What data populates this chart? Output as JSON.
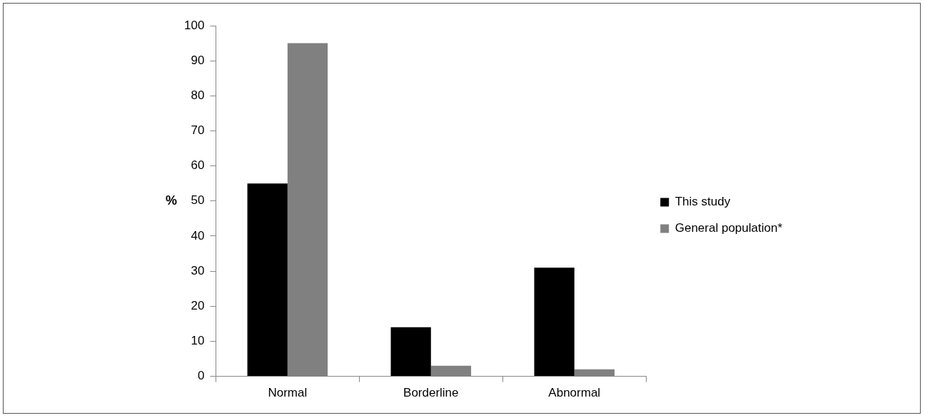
{
  "chart_data": {
    "type": "bar",
    "ylabel": "%",
    "categories": [
      "Normal",
      "Borderline",
      "Abnormal"
    ],
    "series": [
      {
        "name": "This study",
        "color": "#000000",
        "values": [
          55,
          14,
          31
        ]
      },
      {
        "name": "General population*",
        "color": "#808080",
        "values": [
          95,
          3,
          2
        ]
      }
    ],
    "ylim": [
      0,
      100
    ],
    "yticks": [
      0,
      10,
      20,
      30,
      40,
      50,
      60,
      70,
      80,
      90,
      100
    ],
    "grid": false,
    "legend": "right"
  }
}
